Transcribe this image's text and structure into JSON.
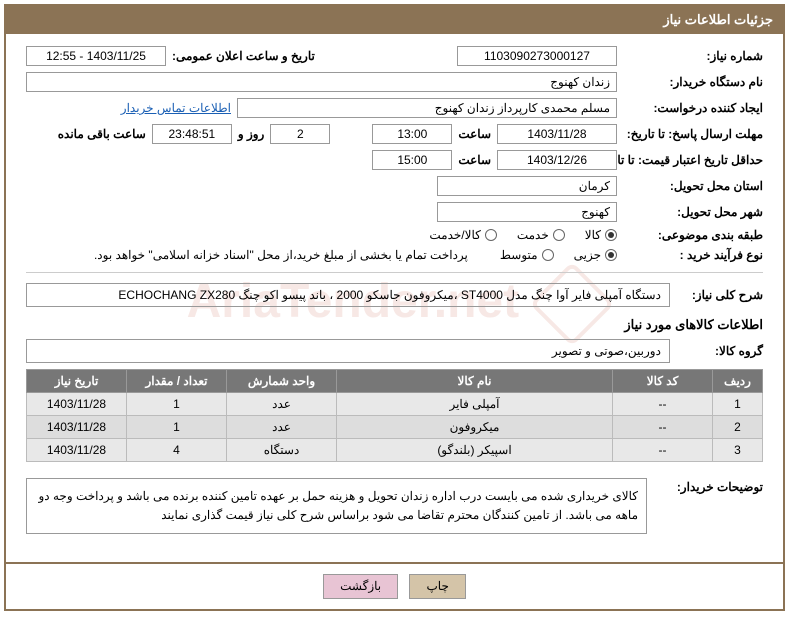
{
  "header": {
    "title": "جزئیات اطلاعات نیاز"
  },
  "fields": {
    "need_number_label": "شماره نیاز:",
    "need_number": "1103090273000127",
    "announce_date_label": "تاریخ و ساعت اعلان عمومی:",
    "announce_date": "1403/11/25 - 12:55",
    "buyer_org_label": "نام دستگاه خریدار:",
    "buyer_org": "زندان کهنوج",
    "requester_label": "ایجاد کننده درخواست:",
    "requester": "مسلم محمدی کارپرداز زندان کهنوج",
    "contact_link": "اطلاعات تماس خریدار",
    "response_deadline_label": "مهلت ارسال پاسخ: تا تاریخ:",
    "response_date": "1403/11/28",
    "time_label": "ساعت",
    "response_time": "13:00",
    "days_remaining": "2",
    "days_label": "روز و",
    "countdown": "23:48:51",
    "remaining_label": "ساعت باقی مانده",
    "validity_label": "حداقل تاریخ اعتبار قیمت: تا تاریخ:",
    "validity_date": "1403/12/26",
    "validity_time": "15:00",
    "province_label": "استان محل تحویل:",
    "province": "کرمان",
    "city_label": "شهر محل تحویل:",
    "city": "کهنوج",
    "category_label": "طبقه بندی موضوعی:",
    "purchase_type_label": "نوع فرآیند خرید :",
    "payment_note": "پرداخت تمام یا بخشی از مبلغ خرید،از محل \"اسناد خزانه اسلامی\" خواهد بود."
  },
  "radios": {
    "category": {
      "options": [
        "کالا",
        "خدمت",
        "کالا/خدمت"
      ],
      "selected": 0
    },
    "purchase_type": {
      "options": [
        "جزیی",
        "متوسط"
      ],
      "selected": 0
    }
  },
  "description": {
    "label": "شرح کلی نیاز:",
    "text": "دستگاه آمپلی فایر آوا چنگ مدل ST4000 ،میکروفون جاسکو 2000 ، باند پیسو اکو چنگ ECHOCHANG ZX280"
  },
  "goods_section": {
    "title": "اطلاعات کالاهای مورد نیاز",
    "group_label": "گروه کالا:",
    "group_value": "دوربین،صوتی و تصویر"
  },
  "table": {
    "headers": [
      "ردیف",
      "کد کالا",
      "نام کالا",
      "واحد شمارش",
      "تعداد / مقدار",
      "تاریخ نیاز"
    ],
    "rows": [
      [
        "1",
        "--",
        "آمپلی فایر",
        "عدد",
        "1",
        "1403/11/28"
      ],
      [
        "2",
        "--",
        "میکروفون",
        "عدد",
        "1",
        "1403/11/28"
      ],
      [
        "3",
        "--",
        "اسپیکر (بلندگو)",
        "دستگاه",
        "4",
        "1403/11/28"
      ]
    ]
  },
  "buyer_note": {
    "label": "توضیحات خریدار:",
    "text": "کالای خریداری شده می بایست درب اداره زندان تحویل و هزینه حمل بر عهده تامین کننده برنده می باشد و پرداخت وجه دو ماهه می باشد. از تامین کنندگان محترم تقاضا می شود براساس شرح کلی نیاز قیمت گذاری نمایند"
  },
  "buttons": {
    "print": "چاپ",
    "back": "بازگشت"
  },
  "watermark": "AriaTender.net"
}
